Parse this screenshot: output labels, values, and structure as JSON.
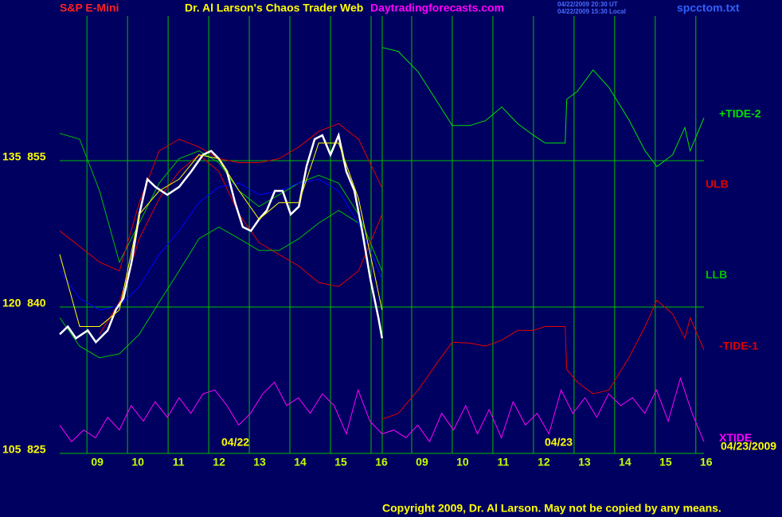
{
  "chart_data": {
    "type": "line",
    "title": "Dr. Al Larson's Chaos Trader Web",
    "instrument": "S&P E-Mini",
    "site": "Daytradingforecasts.com",
    "timestamps": [
      "04/22/2009 20:30 UT",
      "04/22/2009 15:30 Local"
    ],
    "file": "spcctom.txt",
    "dates": [
      "04/22",
      "04/23",
      "04/23/2009"
    ],
    "copyright": "Copyright 2009, Dr. Al Larson. May not be copied by any means.",
    "grid": true,
    "xlim": [
      8.33,
      24.2
    ],
    "xticks": [
      {
        "value": 9,
        "label": "09"
      },
      10,
      11,
      12,
      13,
      14,
      15,
      16,
      {
        "value": 17,
        "label": "09"
      },
      {
        "value": 18,
        "label": "10"
      },
      {
        "value": 19,
        "label": "11"
      },
      {
        "value": 20,
        "label": "12"
      },
      {
        "value": 21,
        "label": "13"
      },
      {
        "value": 22,
        "label": "14"
      },
      {
        "value": 23,
        "label": "15"
      },
      {
        "value": 24,
        "label": "16"
      }
    ],
    "ylim": [
      825,
      870
    ],
    "yticks": [
      {
        "value": 825,
        "label": "105  825"
      },
      {
        "value": 840,
        "label": "120  840"
      },
      {
        "value": 855,
        "label": "135  855"
      }
    ],
    "series": [
      {
        "color": "#00c000",
        "x": [
          8.33,
          8.82,
          9.31,
          9.8,
          10.29,
          10.78,
          11.27,
          11.76,
          12.25,
          12.75,
          13.24,
          13.73,
          14.22,
          14.71,
          15.2,
          15.69,
          16.27
        ],
        "values": [
          857.8,
          857.2,
          851.9,
          844.6,
          848.6,
          852.7,
          855.2,
          856.0,
          854.8,
          851.9,
          850.3,
          851.5,
          852.7,
          853.5,
          852.7,
          849.5,
          843.7
        ]
      },
      {
        "color": "#e00000",
        "x": [
          8.33,
          8.82,
          9.31,
          9.8,
          10.29,
          10.78,
          11.27,
          11.76,
          12.25,
          12.75,
          13.24,
          13.73,
          14.22,
          14.71,
          15.2,
          15.69,
          16.27
        ],
        "values": [
          null,
          null,
          837.2,
          840.5,
          847.0,
          851.1,
          853.9,
          855.6,
          853.9,
          849.5,
          846.6,
          845.4,
          844.2,
          842.5,
          842.1,
          843.7,
          849.5
        ]
      },
      {
        "name": "ULB",
        "color": "#e00000",
        "x": [
          8.33,
          8.82,
          9.31,
          9.8,
          10.29,
          10.78,
          11.27,
          11.76,
          12.25,
          12.75,
          13.24,
          13.73,
          14.22,
          14.71,
          15.2,
          15.69,
          16.27
        ],
        "values": [
          847.8,
          846.2,
          844.6,
          843.7,
          850.7,
          856.0,
          857.2,
          856.4,
          855.2,
          854.8,
          854.8,
          855.2,
          856.4,
          858.0,
          858.8,
          857.2,
          852.2
        ]
      },
      {
        "name": "LLB",
        "color": "#00c000",
        "x": [
          8.33,
          8.82,
          9.31,
          9.8,
          10.29,
          10.78,
          11.27,
          11.76,
          12.25,
          12.75,
          13.24,
          13.73,
          14.22,
          14.71,
          15.2,
          15.69,
          16.27
        ],
        "values": [
          838.9,
          836.0,
          834.8,
          835.2,
          837.2,
          840.5,
          843.7,
          847.0,
          848.2,
          847.0,
          845.8,
          845.8,
          847.0,
          848.6,
          849.9,
          848.6,
          842.9
        ]
      },
      {
        "color": "#0000ff",
        "x": [
          8.33,
          8.82,
          9.31,
          9.8,
          10.29,
          10.78,
          11.27,
          11.76,
          12.25,
          12.75,
          13.24,
          13.73,
          14.22,
          14.71,
          15.2,
          15.69,
          16.27
        ],
        "values": [
          843.7,
          840.9,
          839.7,
          840.1,
          842.1,
          845.4,
          847.8,
          850.7,
          852.3,
          852.7,
          851.5,
          851.9,
          852.7,
          853.1,
          851.9,
          848.6,
          842.9
        ]
      },
      {
        "color": "#ffffff",
        "x": [
          8.33,
          8.53,
          8.73,
          9.02,
          9.22,
          9.51,
          9.71,
          9.9,
          10.1,
          10.29,
          10.49,
          10.69,
          10.98,
          11.27,
          11.57,
          11.86,
          12.06,
          12.25,
          12.45,
          12.65,
          12.84,
          13.04,
          13.24,
          13.43,
          13.63,
          13.82,
          14.02,
          14.22,
          14.41,
          14.61,
          14.8,
          15.0,
          15.2,
          15.39,
          15.59,
          15.78,
          15.98,
          16.18,
          16.27
        ],
        "values": [
          837.2,
          838.0,
          836.8,
          837.6,
          836.4,
          837.6,
          839.7,
          840.9,
          844.6,
          849.5,
          853.1,
          852.3,
          851.5,
          852.3,
          853.9,
          855.6,
          856.0,
          855.2,
          853.9,
          850.7,
          848.2,
          847.8,
          849.0,
          849.9,
          851.9,
          851.9,
          849.5,
          850.3,
          854.4,
          857.2,
          857.6,
          855.6,
          857.6,
          853.9,
          851.9,
          847.8,
          842.9,
          838.9,
          836.8
        ]
      },
      {
        "color": "#ffff00",
        "x": [
          8.33,
          8.82,
          9.31,
          9.8,
          10.29,
          10.78,
          11.27,
          11.76,
          12.25,
          12.75,
          13.24,
          13.73,
          14.22,
          14.71,
          15.2,
          15.69,
          16.27
        ],
        "values": [
          845.4,
          838.0,
          838.0,
          839.7,
          849.5,
          851.9,
          853.1,
          855.6,
          855.2,
          851.9,
          849.0,
          850.7,
          850.7,
          856.8,
          856.8,
          851.1,
          839.7
        ]
      },
      {
        "name": "+TIDE-2",
        "color": "#00e000",
        "x": [
          16.27,
          16.67,
          17.16,
          17.65,
          18.0,
          18.43,
          18.82,
          19.22,
          19.61,
          20.0,
          20.29,
          20.78,
          20.82,
          21.08,
          21.47,
          21.86,
          22.35,
          22.75,
          23.04,
          23.43,
          23.73,
          23.86,
          24.2
        ],
        "values": [
          866.6,
          866.2,
          864.1,
          860.9,
          858.6,
          858.6,
          859.1,
          860.5,
          858.8,
          857.6,
          856.8,
          856.8,
          861.3,
          862.1,
          864.3,
          862.5,
          859.2,
          856.0,
          854.4,
          855.6,
          858.4,
          856.0,
          859.4
        ]
      },
      {
        "name": "-TIDE-1",
        "color": "#e00000",
        "x": [
          16.27,
          16.67,
          17.16,
          17.65,
          18.0,
          18.43,
          18.82,
          19.22,
          19.61,
          20.0,
          20.29,
          20.78,
          20.82,
          21.08,
          21.47,
          21.86,
          22.35,
          22.75,
          23.04,
          23.43,
          23.73,
          23.86,
          24.2
        ],
        "values": [
          828.5,
          829.1,
          831.5,
          834.4,
          836.4,
          836.3,
          836.0,
          836.6,
          837.6,
          837.6,
          838.0,
          838.0,
          833.6,
          832.3,
          831.1,
          831.5,
          834.8,
          838.0,
          840.7,
          839.3,
          836.8,
          838.9,
          835.6
        ]
      },
      {
        "name": "XTIDE",
        "color": "#ff00ff",
        "x": [
          8.33,
          8.62,
          8.92,
          9.21,
          9.51,
          9.8,
          10.09,
          10.39,
          10.68,
          10.98,
          11.27,
          11.56,
          11.86,
          12.15,
          12.45,
          12.74,
          13.03,
          13.33,
          13.62,
          13.92,
          14.21,
          14.5,
          14.8,
          15.09,
          15.39,
          15.68,
          15.97,
          16.27,
          16.56,
          16.86,
          17.15,
          17.44,
          17.74,
          18.03,
          18.33,
          18.62,
          18.91,
          19.21,
          19.5,
          19.8,
          20.09,
          20.38,
          20.68,
          20.97,
          21.27,
          21.56,
          21.85,
          22.15,
          22.44,
          22.74,
          23.03,
          23.32,
          23.62,
          23.91,
          24.2
        ],
        "values": [
          827.9,
          826.2,
          827.4,
          826.6,
          828.7,
          827.4,
          829.9,
          828.3,
          830.3,
          828.7,
          830.7,
          829.1,
          831.1,
          831.5,
          829.9,
          827.9,
          829.1,
          831.1,
          832.3,
          829.9,
          830.7,
          829.1,
          831.1,
          829.9,
          827.0,
          831.5,
          828.3,
          827.0,
          827.4,
          826.6,
          827.9,
          826.2,
          829.1,
          827.4,
          829.9,
          827.0,
          829.5,
          826.6,
          830.3,
          827.9,
          829.1,
          827.0,
          831.5,
          829.1,
          830.7,
          828.7,
          831.1,
          829.9,
          830.7,
          829.1,
          831.5,
          828.3,
          832.7,
          829.1,
          826.2
        ]
      }
    ]
  }
}
